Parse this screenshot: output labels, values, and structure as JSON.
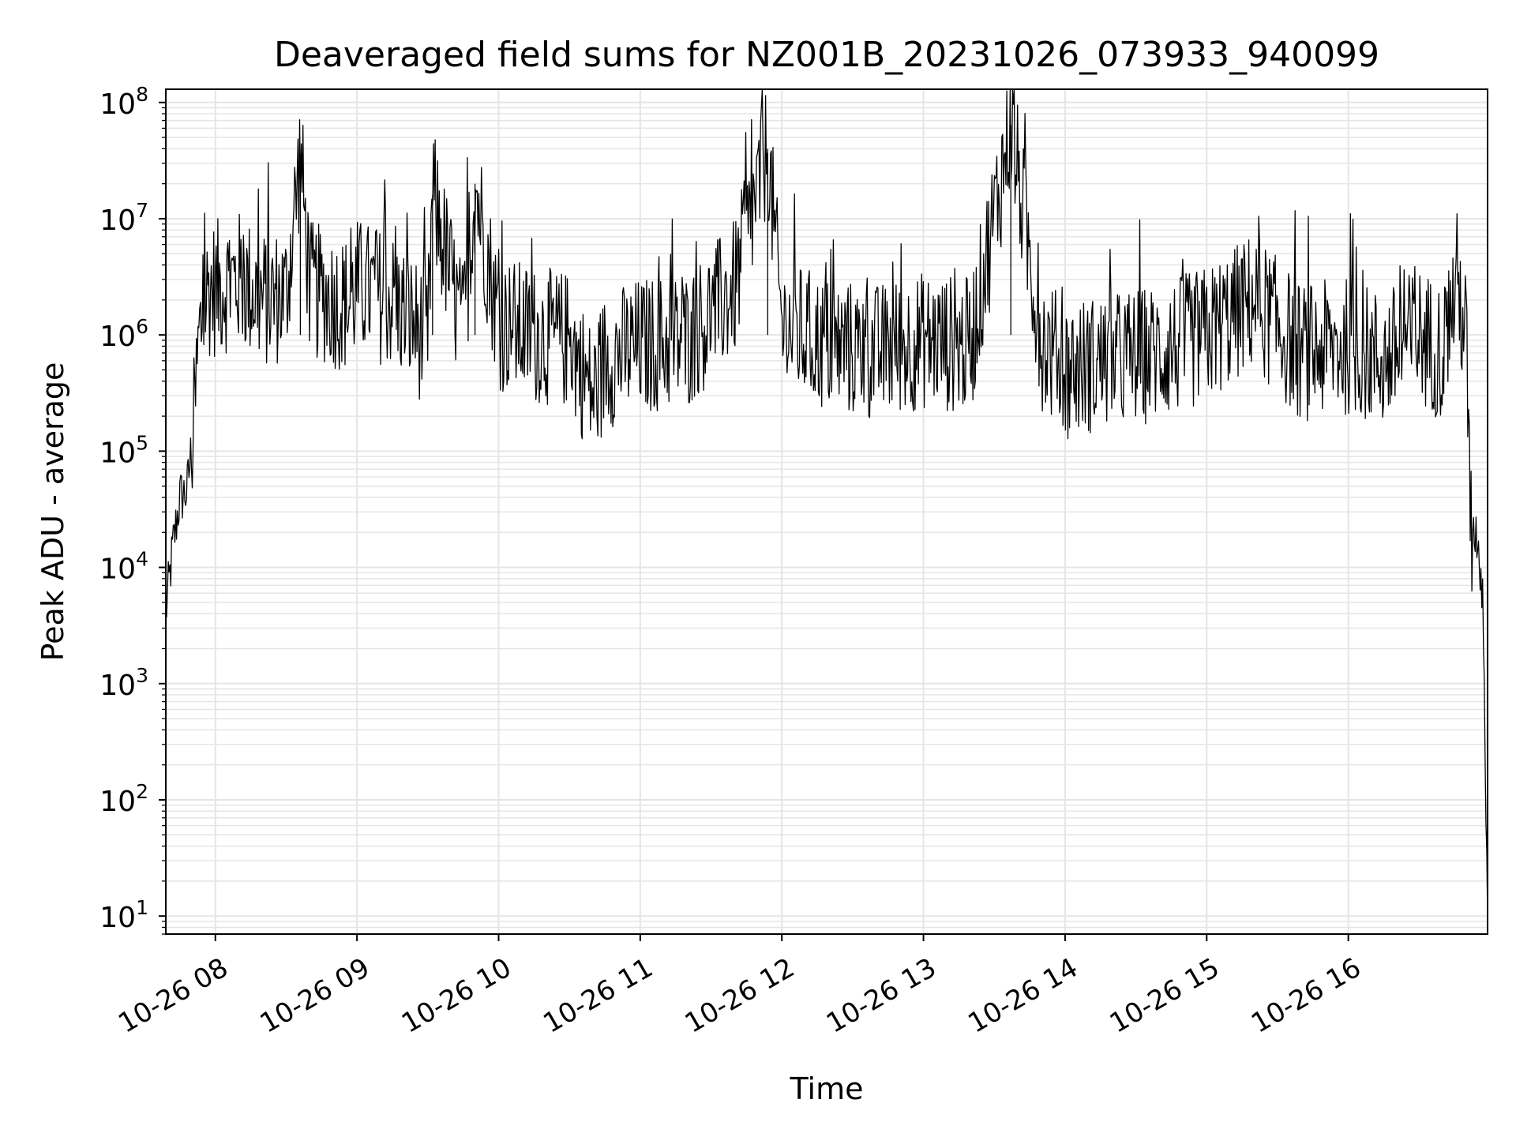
{
  "chart_data": {
    "type": "line",
    "title": "Deaveraged field sums for NZ001B_20231026_073933_940099",
    "xlabel": "Time",
    "ylabel": "Peak ADU - average",
    "yscale": "log",
    "ylim": [
      7,
      130000000
    ],
    "xlim": [
      "2023-10-26 07:39",
      "2023-10-26 16:59"
    ],
    "x_ticks": [
      {
        "label": "10-26 08",
        "value": "2023-10-26 08:00"
      },
      {
        "label": "10-26 09",
        "value": "2023-10-26 09:00"
      },
      {
        "label": "10-26 10",
        "value": "2023-10-26 10:00"
      },
      {
        "label": "10-26 11",
        "value": "2023-10-26 11:00"
      },
      {
        "label": "10-26 12",
        "value": "2023-10-26 12:00"
      },
      {
        "label": "10-26 13",
        "value": "2023-10-26 13:00"
      },
      {
        "label": "10-26 14",
        "value": "2023-10-26 14:00"
      },
      {
        "label": "10-26 15",
        "value": "2023-10-26 15:00"
      },
      {
        "label": "10-26 16",
        "value": "2023-10-26 16:00"
      }
    ],
    "y_ticks": [
      {
        "base": "10",
        "exp": "1",
        "value": 10
      },
      {
        "base": "10",
        "exp": "2",
        "value": 100
      },
      {
        "base": "10",
        "exp": "3",
        "value": 1000
      },
      {
        "base": "10",
        "exp": "4",
        "value": 10000
      },
      {
        "base": "10",
        "exp": "5",
        "value": 100000
      },
      {
        "base": "10",
        "exp": "6",
        "value": 1000000
      },
      {
        "base": "10",
        "exp": "7",
        "value": 10000000
      },
      {
        "base": "10",
        "exp": "8",
        "value": 100000000
      }
    ],
    "grid": "major and minor",
    "line_color": "#000000",
    "grid_color": "#e5e5e5",
    "series": [
      {
        "x": [
          "2023-10-26 07:39",
          "2023-10-26 07:42",
          "2023-10-26 07:45",
          "2023-10-26 07:48",
          "2023-10-26 07:51",
          "2023-10-26 07:53",
          "2023-10-26 07:55",
          "2023-10-26 07:57",
          "2023-10-26 08:00",
          "2023-10-26 08:10",
          "2023-10-26 08:20",
          "2023-10-26 08:30",
          "2023-10-26 08:36",
          "2023-10-26 08:40",
          "2023-10-26 08:50",
          "2023-10-26 08:57",
          "2023-10-26 09:00",
          "2023-10-26 09:15",
          "2023-10-26 09:30",
          "2023-10-26 09:32",
          "2023-10-26 09:45",
          "2023-10-26 09:50",
          "2023-10-26 10:00",
          "2023-10-26 10:15",
          "2023-10-26 10:30",
          "2023-10-26 10:40",
          "2023-10-26 10:45",
          "2023-10-26 11:00",
          "2023-10-26 11:20",
          "2023-10-26 11:40",
          "2023-10-26 11:54",
          "2023-10-26 12:00",
          "2023-10-26 12:20",
          "2023-10-26 12:40",
          "2023-10-26 13:00",
          "2023-10-26 13:20",
          "2023-10-26 13:37",
          "2023-10-26 13:50",
          "2023-10-26 14:00",
          "2023-10-26 14:20",
          "2023-10-26 14:40",
          "2023-10-26 15:00",
          "2023-10-26 15:20",
          "2023-10-26 15:40",
          "2023-10-26 16:00",
          "2023-10-26 16:15",
          "2023-10-26 16:30",
          "2023-10-26 16:40",
          "2023-10-26 16:46",
          "2023-10-26 16:50",
          "2023-10-26 16:52",
          "2023-10-26 16:54",
          "2023-10-26 16:57",
          "2023-10-26 16:59"
        ],
        "y": [
          4000,
          15000,
          40000,
          45000,
          180000,
          900000,
          1600000,
          2500000,
          2500000,
          3000000,
          2000000,
          2200000,
          36000000,
          2500000,
          2000000,
          1800000,
          2600000,
          2000000,
          900000,
          16000000,
          1000000,
          20000000,
          1300000,
          1000000,
          900000,
          300000,
          600000,
          800000,
          900000,
          2500000,
          40000000,
          1200000,
          800000,
          700000,
          900000,
          800000,
          64000000,
          900000,
          500000,
          600000,
          700000,
          1000000,
          2000000,
          700000,
          800000,
          600000,
          1000000,
          700000,
          3000000,
          900000,
          15000,
          20000,
          5000,
          10
        ]
      }
    ]
  }
}
